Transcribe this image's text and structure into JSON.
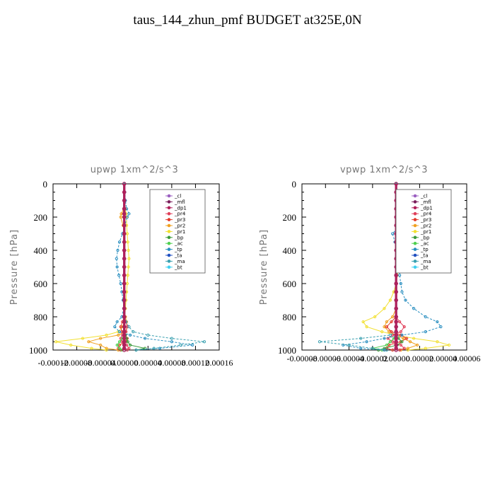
{
  "title": "taus_144_zhun_pmf  BUDGET at325E,0N",
  "colors": {
    "_cl": "#9b5fc0",
    "_mfl": "#7a1f5c",
    "_dp1": "#b0205a",
    "_pr4": "#e0405a",
    "_pr3": "#e23a2a",
    "_pr2": "#f0a020",
    "_pr1": "#f2e030",
    "_bp": "#3a9a3a",
    "_ac": "#50d050",
    "_tp": "#2a8fc0",
    "_ta": "#2050c0",
    "_ma": "#3aa0b0",
    "_bt": "#40d0f0"
  },
  "chart_data": [
    {
      "type": "line",
      "title": "upwp   1xm^2/s^3",
      "ylabel": "Pressure [hPa]",
      "ylim": [
        1000,
        0
      ],
      "xlim": [
        -0.00012,
        0.00016
      ],
      "yticks": [
        "0",
        "200",
        "400",
        "600",
        "800",
        "1000"
      ],
      "xtick_labels": [
        "-0.00012",
        "-0.00008",
        "-0.00004",
        "0.00000",
        "0.00004",
        "0.00008",
        "0.00012",
        "0.00016"
      ],
      "xtick_values": [
        -0.00012,
        -8e-05,
        -4e-05,
        0,
        4e-05,
        8e-05,
        0.00012,
        0.00016
      ],
      "legend": [
        "_cl",
        "_mfl",
        "_dp1",
        "_pr4",
        "_pr3",
        "_pr2",
        "_pr1",
        "_bp",
        "_ac",
        "_tp",
        "_ta",
        "_ma",
        "_bt"
      ],
      "legend_position": "top-right",
      "p": [
        0,
        50,
        100,
        150,
        180,
        200,
        250,
        300,
        350,
        400,
        450,
        500,
        550,
        600,
        650,
        700,
        750,
        800,
        830,
        860,
        890,
        910,
        930,
        950,
        970,
        990,
        1000
      ],
      "series": [
        {
          "name": "_pr2",
          "values": [
            0,
            0,
            0,
            -1e-06,
            -5e-06,
            -6e-06,
            -2e-06,
            0,
            0,
            0,
            0,
            0,
            0,
            0,
            0,
            0,
            0,
            2e-06,
            4e-06,
            5e-06,
            2e-06,
            -1e-05,
            -4e-05,
            -6e-05,
            -4e-05,
            -3e-05,
            -1e-05
          ]
        },
        {
          "name": "_pr1",
          "values": [
            0,
            0,
            0,
            2e-06,
            3e-06,
            4e-06,
            4e-06,
            5e-06,
            6e-06,
            7e-06,
            8e-06,
            7e-06,
            6e-06,
            5e-06,
            4e-06,
            3e-06,
            2e-06,
            1e-06,
            0,
            -3e-06,
            -1e-05,
            -3e-05,
            -7e-05,
            -0.000115,
            -9e-05,
            -5.5e-05,
            -3e-05
          ]
        },
        {
          "name": "_pr3",
          "values": [
            0,
            0,
            0,
            0,
            0,
            0,
            0,
            0,
            0,
            0,
            0,
            0,
            0,
            0,
            0,
            0,
            0,
            0,
            -3e-06,
            -6e-06,
            -4e-06,
            2e-06,
            5e-06,
            3e-06,
            -8e-06,
            -1e-05,
            -6e-06
          ]
        },
        {
          "name": "_pr4",
          "values": [
            0,
            0,
            0,
            0,
            0,
            0,
            0,
            0,
            0,
            0,
            0,
            0,
            0,
            0,
            0,
            0,
            0,
            0,
            3e-06,
            5e-06,
            3e-06,
            -3e-06,
            -6e-06,
            -4e-06,
            4e-06,
            8e-06,
            5e-06
          ]
        },
        {
          "name": "_bp",
          "values": [
            0,
            0,
            0,
            0,
            0,
            0,
            0,
            0,
            0,
            0,
            0,
            0,
            0,
            0,
            0,
            0,
            0,
            0,
            0,
            0,
            0,
            2e-06,
            4e-06,
            6e-06,
            1e-05,
            3.5e-05,
            2e-05
          ]
        },
        {
          "name": "_ac",
          "values": [
            0,
            0,
            0,
            0,
            0,
            0,
            0,
            0,
            0,
            0,
            0,
            0,
            0,
            0,
            0,
            0,
            0,
            0,
            0,
            0,
            0,
            0,
            -3e-06,
            -8e-06,
            -1.2e-05,
            -8e-06,
            -4e-06
          ]
        },
        {
          "name": "_tp",
          "values": [
            0,
            1e-06,
            2e-06,
            4e-06,
            8e-06,
            5e-06,
            1e-06,
            -3e-06,
            -8e-06,
            -1.1e-05,
            -1.3e-05,
            -1.2e-05,
            -9e-06,
            -6e-06,
            -4e-06,
            -2e-06,
            -1e-06,
            -4e-06,
            -1.2e-05,
            -1.6e-05,
            -8e-06,
            1e-05,
            3.5e-05,
            8e-05,
            0.000115,
            6e-05,
            2e-05
          ]
        },
        {
          "name": "_ma",
          "values": [
            0,
            0,
            0,
            0,
            0,
            0,
            0,
            0,
            0,
            0,
            0,
            0,
            0,
            0,
            0,
            0,
            0,
            0,
            3e-06,
            8e-06,
            1.5e-05,
            4e-05,
            8e-05,
            0.000135,
            9.5e-05,
            5e-05,
            2e-05
          ]
        },
        {
          "name": "_cl",
          "values": [
            0,
            0,
            0,
            0,
            0,
            0,
            0,
            0,
            0,
            0,
            0,
            0,
            0,
            0,
            0,
            0,
            0,
            0,
            0,
            0,
            0,
            0,
            0,
            0,
            0,
            0,
            0
          ]
        },
        {
          "name": "_mfl",
          "values": [
            0,
            0,
            0,
            0,
            0,
            0,
            0,
            0,
            0,
            0,
            0,
            0,
            0,
            0,
            0,
            0,
            0,
            0,
            0,
            0,
            0,
            0,
            0,
            0,
            0,
            0,
            0
          ]
        },
        {
          "name": "_dp1",
          "values": [
            0,
            0,
            0,
            0,
            0,
            0,
            0,
            0,
            0,
            0,
            0,
            0,
            0,
            0,
            0,
            0,
            0,
            0,
            0,
            0,
            0,
            0,
            0,
            0,
            0,
            0,
            0
          ]
        }
      ]
    },
    {
      "type": "line",
      "title": "vpwp   1xm^2/s^3",
      "ylabel": "Pressure [hPa]",
      "ylim": [
        1000,
        0
      ],
      "xlim": [
        -8e-05,
        6e-05
      ],
      "yticks": [
        "0",
        "200",
        "400",
        "600",
        "800",
        "1000"
      ],
      "xtick_labels": [
        "-0.00008",
        "-0.00006",
        "-0.00004",
        "-0.00002",
        "0.00000",
        "0.00002",
        "0.00004",
        "0.00006"
      ],
      "xtick_values": [
        -8e-05,
        -6e-05,
        -4e-05,
        -2e-05,
        0,
        2e-05,
        4e-05,
        6e-05
      ],
      "legend": [
        "_cl",
        "_mfl",
        "_dp1",
        "_pr4",
        "_pr3",
        "_pr2",
        "_pr1",
        "_bp",
        "_ac",
        "_tp",
        "_ta",
        "_ma",
        "_bt"
      ],
      "legend_position": "top-right",
      "p": [
        0,
        50,
        100,
        150,
        200,
        250,
        300,
        350,
        400,
        450,
        500,
        550,
        600,
        650,
        700,
        750,
        800,
        830,
        860,
        890,
        910,
        930,
        950,
        970,
        990,
        1000
      ],
      "series": [
        {
          "name": "_pr1",
          "values": [
            0,
            0,
            0,
            1e-06,
            2e-06,
            2e-06,
            2e-06,
            2e-06,
            2e-06,
            2e-06,
            2e-06,
            1e-06,
            0,
            -2e-06,
            -5e-06,
            -1e-05,
            -1.8e-05,
            -2.8e-05,
            -2.5e-05,
            -1.2e-05,
            0,
            1.5e-05,
            3.5e-05,
            4.5e-05,
            2.5e-05,
            1e-05
          ]
        },
        {
          "name": "_pr2",
          "values": [
            0,
            0,
            0,
            0,
            0,
            0,
            0,
            0,
            0,
            0,
            0,
            0,
            0,
            0,
            0,
            0,
            -3e-06,
            -8e-06,
            -1e-05,
            -6e-06,
            0,
            6e-06,
            1.2e-05,
            1.8e-05,
            1e-05,
            4e-06
          ]
        },
        {
          "name": "_pr3",
          "values": [
            0,
            0,
            0,
            0,
            0,
            0,
            0,
            0,
            0,
            0,
            0,
            0,
            0,
            0,
            0,
            0,
            0,
            -4e-06,
            -8e-06,
            -4e-06,
            4e-06,
            9e-06,
            4e-06,
            -6e-06,
            -8e-06,
            -3e-06
          ]
        },
        {
          "name": "_pr4",
          "values": [
            0,
            0,
            0,
            0,
            0,
            0,
            0,
            0,
            0,
            0,
            0,
            0,
            0,
            0,
            0,
            0,
            0,
            3e-06,
            7e-06,
            4e-06,
            -3e-06,
            -7e-06,
            -3e-06,
            4e-06,
            7e-06,
            3e-06
          ]
        },
        {
          "name": "_bp",
          "values": [
            0,
            0,
            0,
            0,
            1e-06,
            2e-06,
            0,
            0,
            0,
            0,
            0,
            0,
            0,
            0,
            0,
            0,
            0,
            0,
            0,
            0,
            0,
            2e-06,
            5e-06,
            1e-06,
            -1e-05,
            -1.5e-05
          ]
        },
        {
          "name": "_ac",
          "values": [
            0,
            0,
            0,
            0,
            0,
            0,
            0,
            0,
            0,
            0,
            0,
            0,
            0,
            0,
            0,
            0,
            0,
            0,
            0,
            0,
            0,
            -2e-06,
            -5e-06,
            -8e-06,
            -2e-05,
            -1.2e-05
          ]
        },
        {
          "name": "_tp",
          "values": [
            0,
            1e-06,
            2e-06,
            3e-06,
            4e-06,
            3e-06,
            -3e-06,
            -1e-06,
            1e-06,
            2e-06,
            3e-06,
            3e-06,
            4e-06,
            5e-06,
            8e-06,
            1.5e-05,
            2.5e-05,
            3.5e-05,
            3.8e-05,
            2.5e-05,
            5e-06,
            -1e-05,
            -2.5e-05,
            -4.5e-05,
            -3e-05,
            -1e-05
          ]
        },
        {
          "name": "_ma",
          "values": [
            0,
            0,
            0,
            0,
            0,
            0,
            0,
            0,
            0,
            0,
            0,
            0,
            0,
            0,
            0,
            0,
            0,
            0,
            0,
            0,
            -5e-06,
            -3e-05,
            -6.5e-05,
            -4e-05,
            -2e-05,
            -8e-06
          ]
        },
        {
          "name": "_cl",
          "values": [
            0,
            0,
            0,
            0,
            0,
            0,
            0,
            0,
            0,
            0,
            0,
            0,
            0,
            0,
            0,
            0,
            0,
            0,
            0,
            0,
            0,
            0,
            0,
            0,
            0,
            0
          ]
        },
        {
          "name": "_mfl",
          "values": [
            0,
            0,
            0,
            0,
            0,
            0,
            0,
            0,
            0,
            0,
            0,
            0,
            0,
            0,
            0,
            0,
            0,
            0,
            0,
            0,
            0,
            0,
            0,
            0,
            0,
            0
          ]
        },
        {
          "name": "_dp1",
          "values": [
            0,
            0,
            0,
            0,
            0,
            0,
            0,
            0,
            0,
            0,
            0,
            0,
            0,
            0,
            0,
            0,
            0,
            0,
            0,
            0,
            0,
            0,
            0,
            0,
            0,
            0
          ]
        }
      ]
    }
  ]
}
